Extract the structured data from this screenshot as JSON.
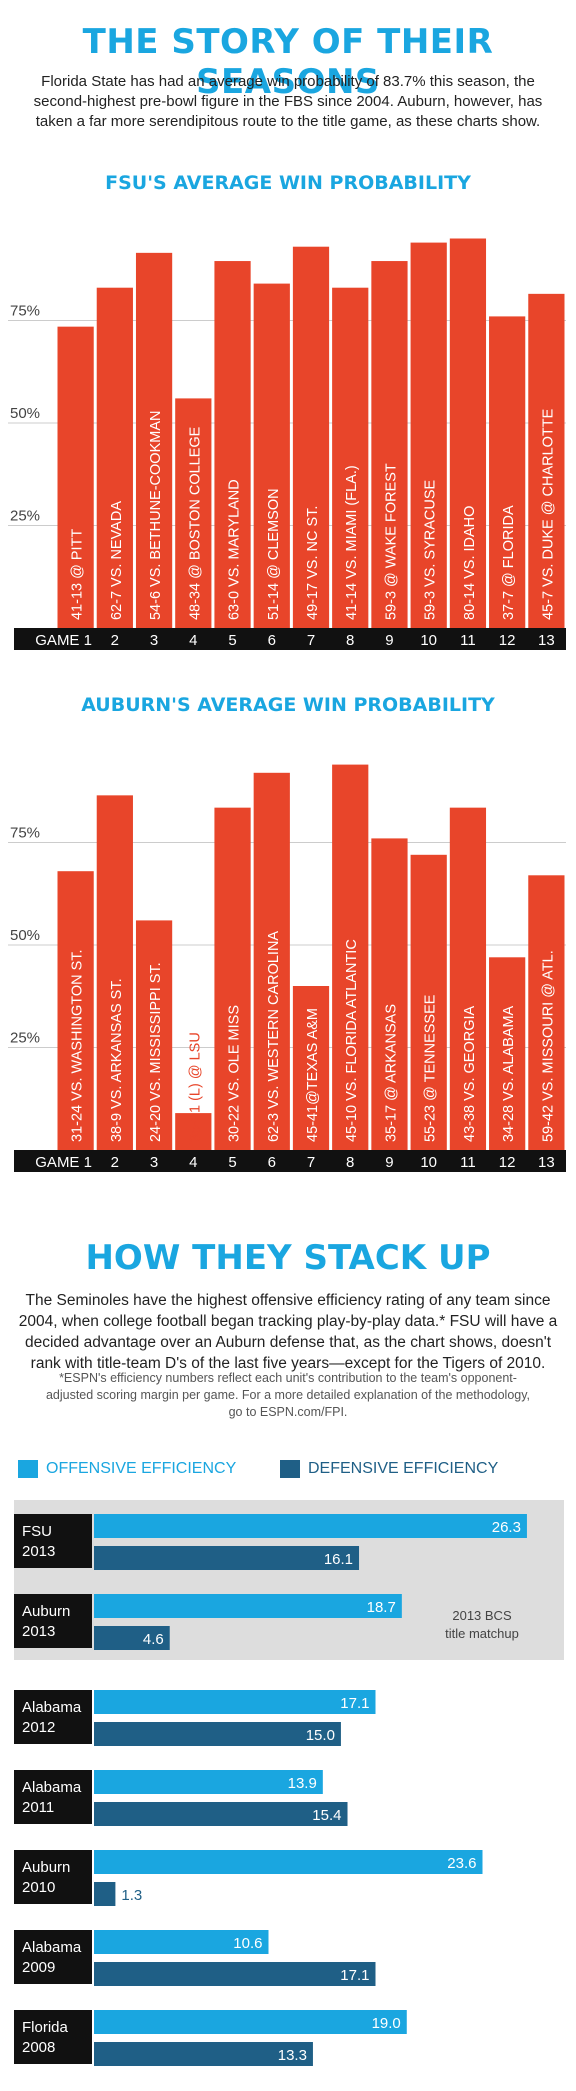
{
  "header": {
    "title": "THE STORY OF THEIR SEASONS",
    "intro": "Florida State has had an average win probability of 83.7% this season, the second-highest pre-bowl figure in the FBS since 2004. Auburn, however, has taken a far more serendipitous route to the title game, as these charts show."
  },
  "colors": {
    "bar": "#e8452a",
    "accent": "#1aa6e0",
    "offense": "#1aa6e0",
    "defense": "#1f5f86",
    "axis_band": "#111111",
    "highlight_band": "#dddddd"
  },
  "chart_data": [
    {
      "type": "bar",
      "title": "FSU'S AVERAGE WIN PROBABILITY",
      "yticks": [
        "25%",
        "50%",
        "75%"
      ],
      "ylim": [
        0,
        100
      ],
      "categories": [
        "GAME 1",
        "2",
        "3",
        "4",
        "5",
        "6",
        "7",
        "8",
        "9",
        "10",
        "11",
        "12",
        "13"
      ],
      "labels": [
        "41-13 @ PITT",
        "62-7 VS. NEVADA",
        "54-6 VS. BETHUNE-COOKMAN",
        "48-34 @ BOSTON COLLEGE",
        "63-0 VS. MARYLAND",
        "51-14 @ CLEMSON",
        "49-17 VS. NC ST.",
        "41-14 VS. MIAMI (FLA.)",
        "59-3 @ WAKE FOREST",
        "59-3 VS. SYRACUSE",
        "80-14 VS. IDAHO",
        "37-7 @ FLORIDA",
        "45-7 VS. DUKE @ CHARLOTTE"
      ],
      "values": [
        73.5,
        83,
        91.5,
        56,
        89.5,
        84,
        93,
        83,
        89.5,
        94,
        95,
        76,
        81.5
      ],
      "losses": []
    },
    {
      "type": "bar",
      "title": "AUBURN'S AVERAGE WIN PROBABILITY",
      "yticks": [
        "25%",
        "50%",
        "75%"
      ],
      "ylim": [
        0,
        100
      ],
      "categories": [
        "GAME 1",
        "2",
        "3",
        "4",
        "5",
        "6",
        "7",
        "8",
        "9",
        "10",
        "11",
        "12",
        "13"
      ],
      "labels": [
        "31-24 VS. WASHINGTON ST.",
        "38-9 VS. ARKANSAS ST.",
        "24-20 VS. MISSISSIPPI ST.",
        "35-21 (L) @ LSU",
        "30-22 VS. OLE MISS",
        "62-3 VS. WESTERN CAROLINA",
        "45-41@TEXAS A&M",
        "45-10 VS. FLORIDA ATLANTIC",
        "35-17 @ ARKANSAS",
        "55-23 @ TENNESSEE",
        "43-38 VS. GEORGIA",
        "34-28 VS. ALABAMA",
        "59-42 VS. MISSOURI @ ATL."
      ],
      "values": [
        68,
        86.5,
        56,
        9,
        83.5,
        92,
        40,
        94,
        76,
        72,
        83.5,
        47,
        67
      ],
      "losses": [
        3
      ]
    },
    {
      "type": "bar",
      "title": "HOW THEY STACK UP",
      "legend": [
        "OFFENSIVE EFFICIENCY",
        "DEFENSIVE EFFICIENCY"
      ],
      "legend_position": "top",
      "highlight_note": [
        "2013 BCS",
        "title matchup"
      ],
      "xlim": [
        0,
        28
      ],
      "groups": [
        {
          "team": "FSU",
          "year": "2013",
          "offense": 26.3,
          "defense": 16.1,
          "offense_label": "26.3",
          "defense_label": "16.1",
          "highlight": true
        },
        {
          "team": "Auburn",
          "year": "2013",
          "offense": 18.7,
          "defense": 4.6,
          "offense_label": "18.7",
          "defense_label": "4.6",
          "highlight": true
        },
        {
          "team": "Alabama",
          "year": "2012",
          "offense": 17.1,
          "defense": 15.0,
          "offense_label": "17.1",
          "defense_label": "15.0",
          "highlight": false
        },
        {
          "team": "Alabama",
          "year": "2011",
          "offense": 13.9,
          "defense": 15.4,
          "offense_label": "13.9",
          "defense_label": "15.4",
          "highlight": false
        },
        {
          "team": "Auburn",
          "year": "2010",
          "offense": 23.6,
          "defense": 1.3,
          "offense_label": "23.6",
          "defense_label": "1.3",
          "highlight": false
        },
        {
          "team": "Alabama",
          "year": "2009",
          "offense": 10.6,
          "defense": 17.1,
          "offense_label": "10.6",
          "defense_label": "17.1",
          "highlight": false
        },
        {
          "team": "Florida",
          "year": "2008",
          "offense": 19.0,
          "defense": 13.3,
          "offense_label": "19.0",
          "defense_label": "13.3",
          "highlight": false
        }
      ]
    }
  ],
  "stack": {
    "title": "HOW THEY STACK UP",
    "intro": "The Seminoles have the highest offensive efficiency rating of any team since 2004, when college football began tracking play-by-play data.* FSU will have a decided advantage over an Auburn defense that, as the chart shows, doesn't rank with title-team D's of the last five years—except for the Tigers of 2010.",
    "footnote": "*ESPN's efficiency numbers reflect each unit's contribution to the team's opponent-adjusted scoring margin per game. For a more detailed explanation of the methodology, go to ESPN.com/FPI.",
    "legend_offense": "OFFENSIVE EFFICIENCY",
    "legend_defense": "DEFENSIVE EFFICIENCY"
  }
}
